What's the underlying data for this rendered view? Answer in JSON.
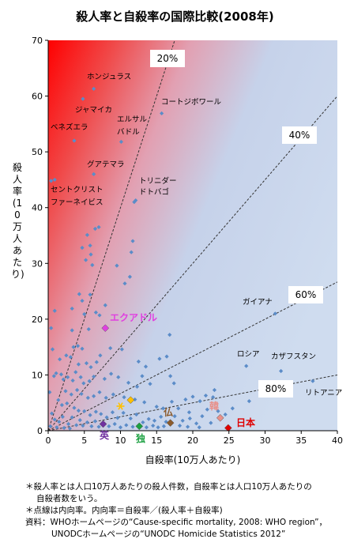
{
  "chart_data": {
    "type": "scatter",
    "title": "殺人率と自殺率の国際比較(2008年)",
    "xlabel": "自殺率(10万人あたり)",
    "ylabel": "殺人率(10万人あたり)",
    "xlim": [
      0,
      40
    ],
    "ylim": [
      0,
      70
    ],
    "xticks": [
      "0",
      "5",
      "10",
      "15",
      "20",
      "25",
      "30",
      "35",
      "40"
    ],
    "yticks": [
      "0",
      "10",
      "20",
      "30",
      "40",
      "50",
      "60",
      "70"
    ],
    "grid": false,
    "ratio_lines": [
      {
        "label": "20%",
        "ratio": 0.2
      },
      {
        "label": "40%",
        "ratio": 0.4
      },
      {
        "label": "60%",
        "ratio": 0.6
      },
      {
        "label": "80%",
        "ratio": 0.8
      }
    ],
    "labeled_points": [
      {
        "label": "ホンジュラス",
        "x": 6.3,
        "y": 61.3
      },
      {
        "label": "ジャマイカ",
        "x": 4.8,
        "y": 59.5
      },
      {
        "label": "コートジボワール",
        "x": 15.7,
        "y": 56.9
      },
      {
        "label": "ベネズエラ",
        "x": 3.6,
        "y": 52
      },
      {
        "label": "エルサルバドル",
        "x": 10.1,
        "y": 51.8
      },
      {
        "label": "グアテマラ",
        "x": 6.3,
        "y": 46
      },
      {
        "label": "セントクリストファーネイビス",
        "x": 0.9,
        "y": 45
      },
      {
        "label": "トリニダードトバゴ",
        "x": 11.9,
        "y": 41
      },
      {
        "label": "エクアドル",
        "x": 7.9,
        "y": 18.4,
        "color": "#e040e0",
        "marker": "diamond"
      },
      {
        "label": "ガイアナ",
        "x": 31.4,
        "y": 21
      },
      {
        "label": "ロシア",
        "x": 27.4,
        "y": 11.6
      },
      {
        "label": "カザフスタン",
        "x": 32.2,
        "y": 10.7
      },
      {
        "label": "リトアニア",
        "x": 36.6,
        "y": 8.9
      },
      {
        "label": "韓",
        "x": 23.8,
        "y": 2.3,
        "color": "#e8908a",
        "marker": "diamond"
      },
      {
        "label": "日本",
        "x": 24.9,
        "y": 0.5,
        "color": "#e00000",
        "marker": "diamond"
      },
      {
        "label": "仏",
        "x": 16.9,
        "y": 1.4,
        "color": "#8b5a2b",
        "marker": "diamond"
      },
      {
        "label": "独",
        "x": 12.6,
        "y": 0.8,
        "color": "#1aa040",
        "marker": "diamond"
      },
      {
        "label": "英",
        "x": 7.6,
        "y": 1.2,
        "color": "#7030a0",
        "marker": "diamond"
      },
      {
        "label": "",
        "x": 10.0,
        "y": 4.4,
        "color": "#ffc000",
        "marker": "asterisk"
      },
      {
        "label": "",
        "x": 11.4,
        "y": 5.5,
        "color": "#ffc000",
        "marker": "diamond"
      }
    ],
    "series": [
      {
        "points": [
          [
            0.4,
            44.8
          ],
          [
            6.5,
            36.2
          ],
          [
            7.0,
            36.5
          ],
          [
            5.4,
            35.1
          ],
          [
            5.8,
            33.2
          ],
          [
            5.9,
            31.6
          ],
          [
            4.7,
            32.8
          ],
          [
            5.2,
            30.6
          ],
          [
            6.1,
            29.7
          ],
          [
            9.5,
            29.6
          ],
          [
            11.5,
            32.0
          ],
          [
            11.7,
            34.0
          ],
          [
            12.1,
            41.3
          ],
          [
            10.6,
            26.4
          ],
          [
            11.3,
            27.6
          ],
          [
            4.3,
            24.5
          ],
          [
            4.7,
            23.3
          ],
          [
            5.8,
            24.4
          ],
          [
            6.6,
            21.2
          ],
          [
            7.9,
            22.5
          ],
          [
            7.1,
            20.7
          ],
          [
            5.0,
            20.9
          ],
          [
            3.3,
            21.9
          ],
          [
            0.9,
            21.5
          ],
          [
            0.4,
            18.4
          ],
          [
            3.3,
            18.0
          ],
          [
            5.6,
            18.2
          ],
          [
            3.5,
            15.0
          ],
          [
            4.1,
            15.2
          ],
          [
            4.7,
            14.7
          ],
          [
            2.5,
            13.5
          ],
          [
            3.1,
            13.2
          ],
          [
            4.2,
            11.9
          ],
          [
            5.3,
            12.1
          ],
          [
            5.9,
            11.4
          ],
          [
            6.7,
            12.3
          ],
          [
            7.2,
            13.5
          ],
          [
            8.6,
            14.8
          ],
          [
            10.2,
            14.6
          ],
          [
            12.5,
            12.4
          ],
          [
            13.5,
            11.5
          ],
          [
            16.4,
            13.3
          ],
          [
            16.8,
            17.2
          ],
          [
            15.4,
            12.9
          ],
          [
            1.1,
            10.3
          ],
          [
            1.8,
            10.1
          ],
          [
            2.7,
            9.6
          ],
          [
            3.4,
            9.0
          ],
          [
            3.8,
            10.5
          ],
          [
            4.5,
            9.6
          ],
          [
            4.9,
            8.5
          ],
          [
            5.7,
            8.9
          ],
          [
            6.3,
            9.7
          ],
          [
            7.8,
            9.3
          ],
          [
            8.7,
            10.2
          ],
          [
            9.7,
            9.6
          ],
          [
            11.1,
            8.6
          ],
          [
            12.3,
            7.9
          ],
          [
            14.1,
            8.4
          ],
          [
            16.9,
            9.8
          ],
          [
            17.4,
            8.5
          ],
          [
            13.0,
            9.8
          ],
          [
            2.4,
            7.1
          ],
          [
            3.2,
            6.5
          ],
          [
            4.0,
            7.3
          ],
          [
            4.6,
            6.6
          ],
          [
            5.5,
            5.9
          ],
          [
            6.3,
            6.2
          ],
          [
            7.1,
            6.9
          ],
          [
            8.0,
            5.9
          ],
          [
            9.0,
            6.5
          ],
          [
            10.5,
            6.0
          ],
          [
            12.0,
            5.6
          ],
          [
            13.3,
            5.1
          ],
          [
            15.0,
            4.3
          ],
          [
            15.9,
            4.0
          ],
          [
            17.1,
            5.2
          ],
          [
            18.0,
            4.0
          ],
          [
            19.0,
            5.6
          ],
          [
            20.0,
            6.1
          ],
          [
            21.0,
            5.3
          ],
          [
            22.0,
            3.8
          ],
          [
            21.8,
            6.3
          ],
          [
            23.0,
            7.3
          ],
          [
            1.4,
            5.5
          ],
          [
            1.9,
            4.6
          ],
          [
            2.6,
            4.9
          ],
          [
            3.6,
            4.1
          ],
          [
            4.2,
            3.6
          ],
          [
            5.0,
            3.5
          ],
          [
            5.8,
            2.8
          ],
          [
            6.6,
            3.4
          ],
          [
            7.3,
            3.0
          ],
          [
            8.1,
            2.4
          ],
          [
            8.9,
            3.3
          ],
          [
            9.6,
            2.3
          ],
          [
            10.4,
            3.2
          ],
          [
            11.4,
            2.2
          ],
          [
            12.2,
            2.9
          ],
          [
            13.1,
            1.5
          ],
          [
            13.9,
            2.1
          ],
          [
            14.7,
            1.8
          ],
          [
            15.6,
            2.5
          ],
          [
            16.3,
            1.6
          ],
          [
            17.5,
            2.6
          ],
          [
            18.6,
            1.8
          ],
          [
            19.6,
            2.2
          ],
          [
            20.5,
            1.3
          ],
          [
            21.3,
            2.6
          ],
          [
            22.5,
            1.4
          ],
          [
            23.5,
            3.5
          ],
          [
            24.5,
            2.9
          ],
          [
            0.5,
            3.1
          ],
          [
            0.9,
            2.0
          ],
          [
            1.5,
            1.6
          ],
          [
            2.0,
            2.5
          ],
          [
            2.8,
            1.2
          ],
          [
            3.3,
            2.4
          ],
          [
            3.9,
            1.0
          ],
          [
            4.4,
            1.9
          ],
          [
            4.8,
            0.9
          ],
          [
            5.4,
            1.5
          ],
          [
            6.0,
            0.8
          ],
          [
            6.5,
            1.7
          ],
          [
            7.0,
            0.7
          ],
          [
            8.4,
            0.8
          ],
          [
            9.2,
            1.2
          ],
          [
            10.0,
            0.6
          ],
          [
            10.8,
            1.0
          ],
          [
            11.7,
            0.7
          ],
          [
            13.6,
            0.6
          ],
          [
            14.5,
            0.9
          ],
          [
            15.2,
            0.6
          ],
          [
            16.0,
            0.8
          ],
          [
            18.2,
            0.9
          ],
          [
            19.3,
            0.7
          ],
          [
            20.9,
            0.6
          ],
          [
            0.3,
            0.8
          ],
          [
            1.2,
            0.6
          ],
          [
            2.2,
            0.5
          ],
          [
            3.0,
            0.4
          ],
          [
            27.8,
            5.3
          ],
          [
            25.5,
            4.0
          ],
          [
            22.8,
            6.0
          ],
          [
            19.5,
            3.3
          ],
          [
            0.2,
            6.9
          ],
          [
            0.8,
            9.8
          ],
          [
            1.6,
            12.8
          ],
          [
            2.1,
            9.2
          ],
          [
            0.6,
            14.6
          ]
        ]
      }
    ]
  },
  "notes": [
    "＊殺人率とは人口10万人あたりの殺人件数，自殺率とは人口10万人あたりの",
    "自殺者数をいう。",
    "＊点線は内向率。内向率＝自殺率／(殺人率＋自殺率)",
    "資料：WHOホームページの“Cause-specific mortality, 2008: WHO region”，",
    "UNODCホームページの“UNODC Homicide Statistics 2012”"
  ],
  "colors": {
    "point": "#5b8cc8",
    "hot": "#ff0000",
    "cool": "#c8d8ee",
    "dashed": "#333333"
  }
}
